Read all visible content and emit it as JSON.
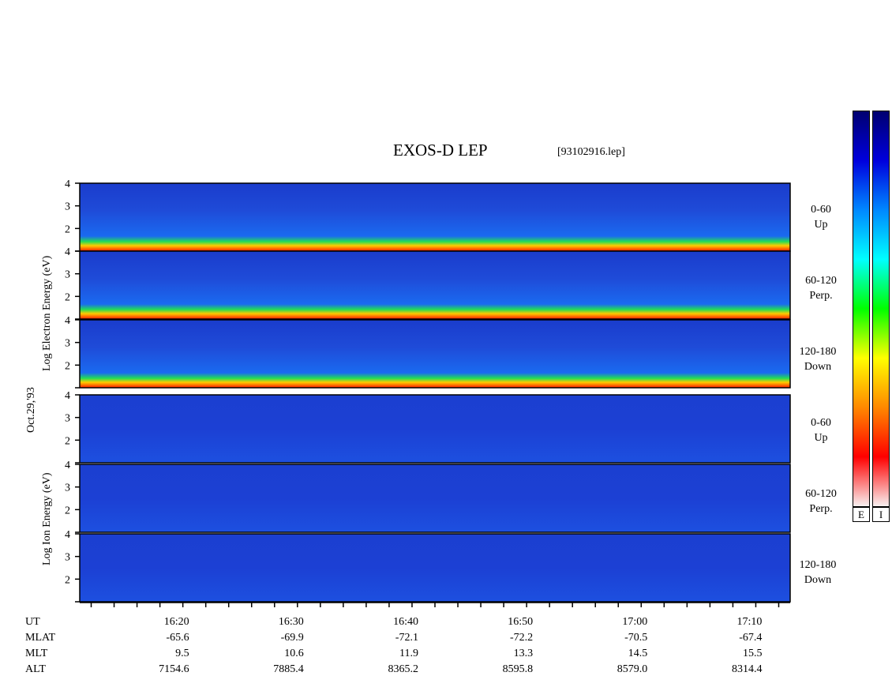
{
  "title": "EXOS-D LEP",
  "file_label": "[93102916.lep]",
  "date_label": "Oct.29,'93",
  "electron_axis_label": "Log  Electron  Energy (eV)",
  "ion_axis_label": "Log   Ion   Energy (eV)",
  "colorbar_labels": [
    "E",
    "I"
  ],
  "footer": {
    "row_labels": [
      "UT",
      "MLAT",
      "MLT",
      "ALT"
    ],
    "UT": [
      "16:20",
      "16:30",
      "16:40",
      "16:50",
      "17:00",
      "17:10"
    ],
    "MLAT": [
      "-65.6",
      "-69.9",
      "-72.1",
      "-72.2",
      "-70.5",
      "-67.4"
    ],
    "MLT": [
      "9.5",
      "10.6",
      "11.9",
      "13.3",
      "14.5",
      "15.5"
    ],
    "ALT": [
      "7154.6",
      "7885.4",
      "8365.2",
      "8595.8",
      "8579.0",
      "8314.4"
    ]
  },
  "colors": {
    "colorbar": [
      "#f8f0f0",
      "#ff0000",
      "#ff8800",
      "#ffff00",
      "#00ff00",
      "#00ffff",
      "#0088ff",
      "#0000dd",
      "#000070"
    ],
    "panel_background": "#1b3fd6"
  },
  "chart_data": {
    "type": "heatmap",
    "description_units": "log10 energy (eV) vs UT",
    "ylim": [
      1,
      4
    ],
    "yticks": [
      1,
      2,
      3,
      4
    ],
    "ytick_labels": [
      "",
      "2",
      "3",
      "4"
    ],
    "x_range_minutes_UT": [
      "16:11",
      "17:13"
    ],
    "xtick_labels": [
      "16:20",
      "16:30",
      "16:40",
      "16:50",
      "17:00",
      "17:10"
    ],
    "panels": [
      {
        "species": "Electron",
        "pitch_angle": "0-60",
        "direction": "Up"
      },
      {
        "species": "Electron",
        "pitch_angle": "60-120",
        "direction": "Perp."
      },
      {
        "species": "Electron",
        "pitch_angle": "120-180",
        "direction": "Down"
      },
      {
        "species": "Ion",
        "pitch_angle": "0-60",
        "direction": "Up"
      },
      {
        "species": "Ion",
        "pitch_angle": "60-120",
        "direction": "Perp."
      },
      {
        "species": "Ion",
        "pitch_angle": "120-180",
        "direction": "Down"
      }
    ]
  }
}
